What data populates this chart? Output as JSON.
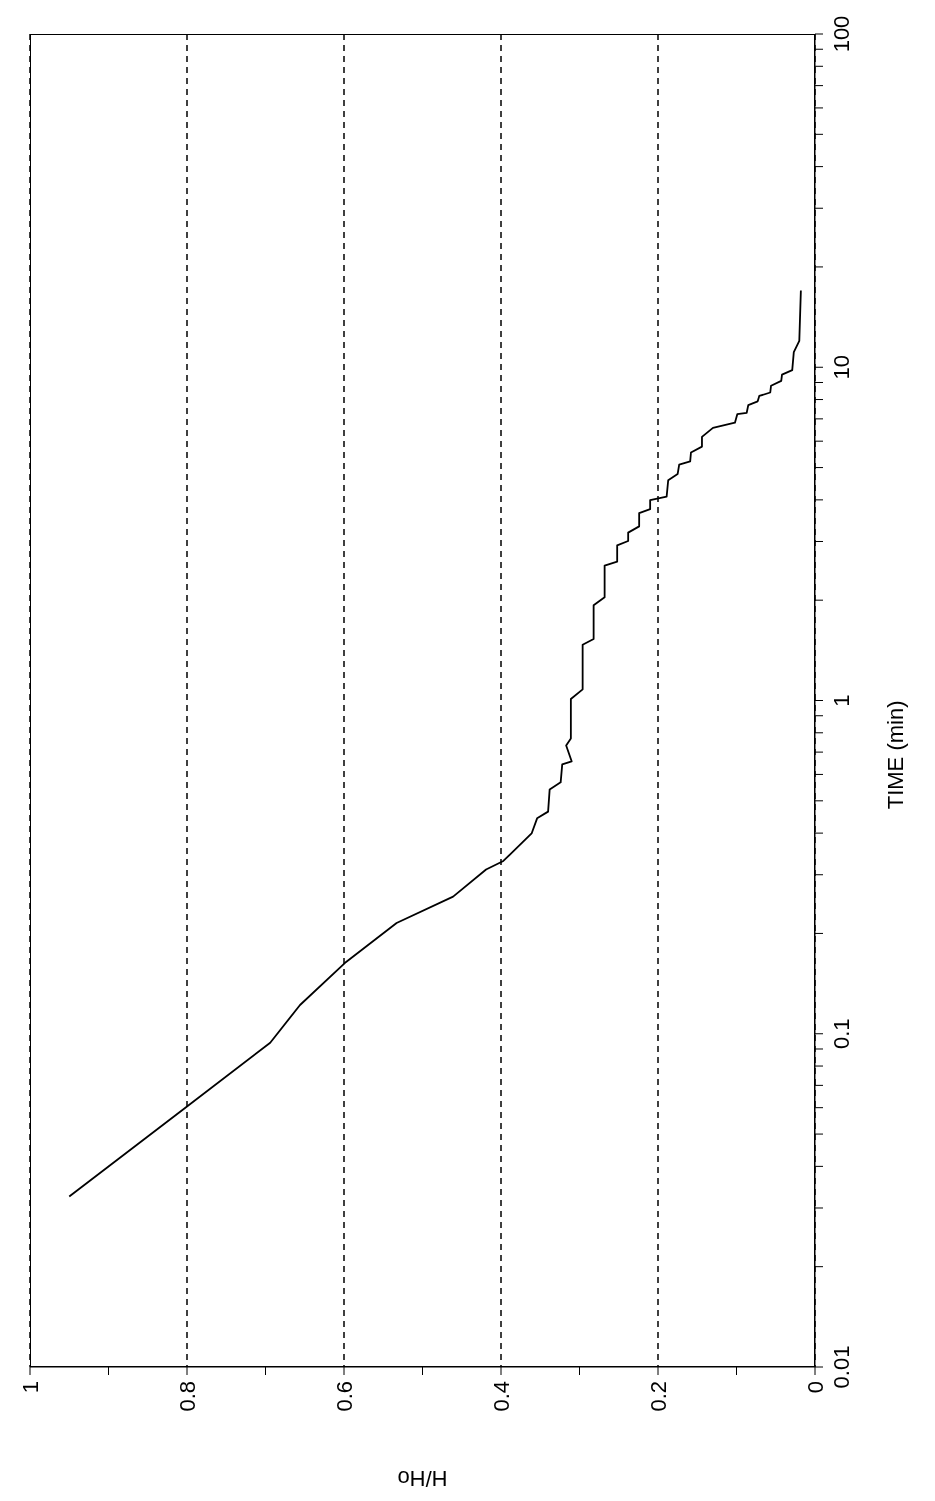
{
  "chart_data": {
    "type": "line",
    "xlabel": "H/Ho",
    "ylabel": "TIME (min)",
    "log": "y",
    "xlim": [
      1,
      0
    ],
    "xticks": [
      {
        "value": 1,
        "label": "1"
      },
      {
        "value": 0.9,
        "label": null
      },
      {
        "value": 0.8,
        "label": "0.8"
      },
      {
        "value": 0.7,
        "label": null
      },
      {
        "value": 0.6,
        "label": "0.6"
      },
      {
        "value": 0.5,
        "label": null
      },
      {
        "value": 0.4,
        "label": "0.4"
      },
      {
        "value": 0.3,
        "label": null
      },
      {
        "value": 0.2,
        "label": "0.2"
      },
      {
        "value": 0.1,
        "label": null
      },
      {
        "value": 0,
        "label": "0"
      }
    ],
    "ylim": [
      0.01,
      100
    ],
    "yticks": [
      {
        "value": 0.01,
        "label": "0.01"
      },
      {
        "value": 0.02,
        "label": null
      },
      {
        "value": 0.03,
        "label": null
      },
      {
        "value": 0.04,
        "label": null
      },
      {
        "value": 0.05,
        "label": null
      },
      {
        "value": 0.06,
        "label": null
      },
      {
        "value": 0.07,
        "label": null
      },
      {
        "value": 0.08,
        "label": null
      },
      {
        "value": 0.09,
        "label": null
      },
      {
        "value": 0.1,
        "label": "0.1"
      },
      {
        "value": 0.2,
        "label": null
      },
      {
        "value": 0.3,
        "label": null
      },
      {
        "value": 0.4,
        "label": null
      },
      {
        "value": 0.5,
        "label": null
      },
      {
        "value": 0.6,
        "label": null
      },
      {
        "value": 0.7,
        "label": null
      },
      {
        "value": 0.8,
        "label": null
      },
      {
        "value": 0.9,
        "label": null
      },
      {
        "value": 1,
        "label": "1"
      },
      {
        "value": 2,
        "label": null
      },
      {
        "value": 3,
        "label": null
      },
      {
        "value": 4,
        "label": null
      },
      {
        "value": 5,
        "label": null
      },
      {
        "value": 6,
        "label": null
      },
      {
        "value": 7,
        "label": null
      },
      {
        "value": 8,
        "label": null
      },
      {
        "value": 9,
        "label": null
      },
      {
        "value": 10,
        "label": "10"
      },
      {
        "value": 20,
        "label": null
      },
      {
        "value": 30,
        "label": null
      },
      {
        "value": 40,
        "label": null
      },
      {
        "value": 50,
        "label": null
      },
      {
        "value": 60,
        "label": null
      },
      {
        "value": 70,
        "label": null
      },
      {
        "value": 80,
        "label": null
      },
      {
        "value": 90,
        "label": null
      },
      {
        "value": 100,
        "label": "100"
      }
    ],
    "grid": "x",
    "legend": false,
    "marker": "none",
    "line_style": "solid",
    "series": [
      {
        "color": "#000000",
        "x": [
          0.95,
          0.8,
          0.694,
          0.656,
          0.599,
          0.533,
          0.461,
          0.419,
          0.397,
          0.361,
          0.354,
          0.34,
          0.338,
          0.324,
          0.322,
          0.31,
          0.317,
          0.311,
          0.311,
          0.296,
          0.296,
          0.282,
          0.282,
          0.268,
          0.268,
          0.252,
          0.252,
          0.238,
          0.238,
          0.224,
          0.224,
          0.21,
          0.21,
          0.189,
          0.187,
          0.175,
          0.173,
          0.159,
          0.158,
          0.144,
          0.144,
          0.13,
          0.102,
          0.099,
          0.087,
          0.085,
          0.073,
          0.071,
          0.057,
          0.056,
          0.043,
          0.042,
          0.029,
          0.027,
          0.02,
          0.018
        ],
        "values": [
          0.0325,
          0.0605,
          0.094,
          0.122,
          0.163,
          0.215,
          0.258,
          0.311,
          0.33,
          0.399,
          0.443,
          0.464,
          0.541,
          0.568,
          0.643,
          0.657,
          0.733,
          0.769,
          1.01,
          1.08,
          1.47,
          1.53,
          1.93,
          2.04,
          2.54,
          2.61,
          2.92,
          3.01,
          3.19,
          3.33,
          3.65,
          3.75,
          3.99,
          4.09,
          4.58,
          4.78,
          5.1,
          5.22,
          5.55,
          5.78,
          6.18,
          6.58,
          6.82,
          7.23,
          7.3,
          7.7,
          7.9,
          8.2,
          8.4,
          8.8,
          9.1,
          9.5,
          9.8,
          11.1,
          12,
          17
        ]
      }
    ]
  }
}
